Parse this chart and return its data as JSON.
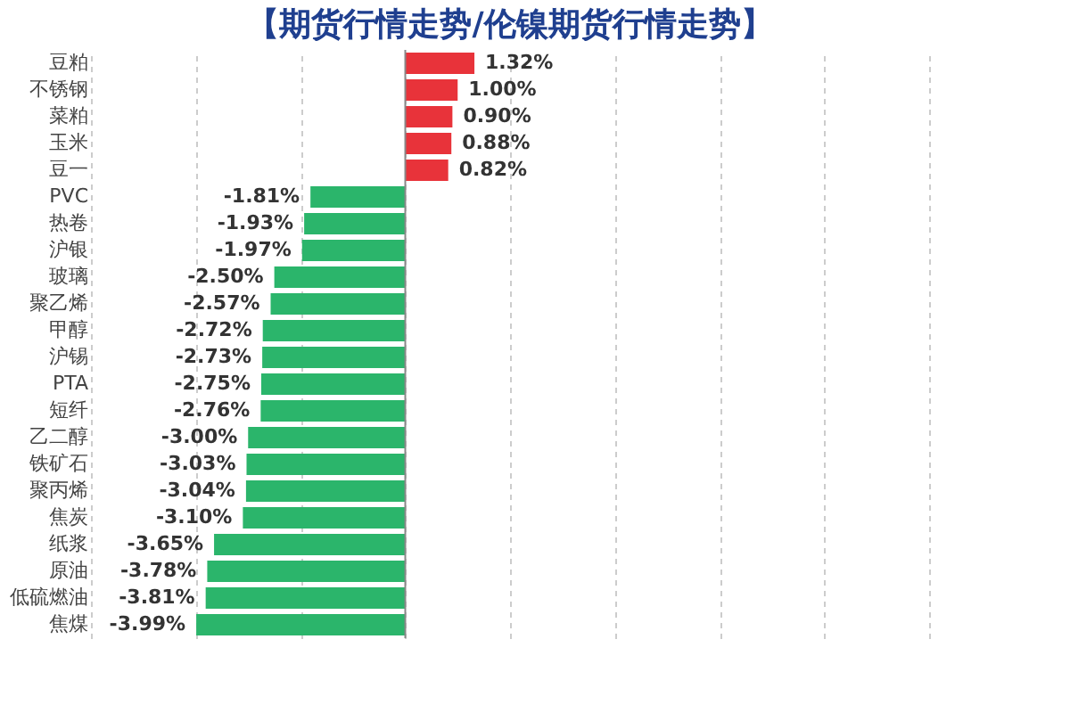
{
  "chart_data": {
    "type": "bar",
    "orientation": "horizontal",
    "title": "【期货行情走势/伦镍期货行情走势】",
    "categories": [
      "豆粕",
      "不锈钢",
      "菜粕",
      "玉米",
      "豆一",
      "PVC",
      "热卷",
      "沪银",
      "玻璃",
      "聚乙烯",
      "甲醇",
      "沪锡",
      "PTA",
      "短纤",
      "乙二醇",
      "铁矿石",
      "聚丙烯",
      "焦炭",
      "纸浆",
      "原油",
      "低硫燃油",
      "焦煤"
    ],
    "values": [
      1.32,
      1.0,
      0.9,
      0.88,
      0.82,
      -1.81,
      -1.93,
      -1.97,
      -2.5,
      -2.57,
      -2.72,
      -2.73,
      -2.75,
      -2.76,
      -3.0,
      -3.03,
      -3.04,
      -3.1,
      -3.65,
      -3.78,
      -3.81,
      -3.99
    ],
    "value_labels": [
      "1.32%",
      "1.00%",
      "0.90%",
      "0.88%",
      "0.82%",
      "-1.81%",
      "-1.93%",
      "-1.97%",
      "-2.50%",
      "-2.57%",
      "-2.72%",
      "-2.73%",
      "-2.75%",
      "-2.76%",
      "-3.00%",
      "-3.03%",
      "-3.04%",
      "-3.10%",
      "-3.65%",
      "-3.78%",
      "-3.81%",
      "-3.99%"
    ],
    "colors": [
      "#e8333a",
      "#e8333a",
      "#e8333a",
      "#e8333a",
      "#e8333a",
      "#2bb56b",
      "#2bb56b",
      "#2bb56b",
      "#2bb56b",
      "#2bb56b",
      "#2bb56b",
      "#2bb56b",
      "#2bb56b",
      "#2bb56b",
      "#2bb56b",
      "#2bb56b",
      "#2bb56b",
      "#2bb56b",
      "#2bb56b",
      "#2bb56b",
      "#2bb56b",
      "#2bb56b"
    ],
    "xlim": [
      -6,
      10
    ],
    "xticks": [
      {
        "value": -6,
        "label": null
      },
      {
        "value": -4,
        "label": null
      },
      {
        "value": -2,
        "label": null
      },
      {
        "value": 0,
        "label": null
      },
      {
        "value": 2,
        "label": null
      },
      {
        "value": 4,
        "label": null
      },
      {
        "value": 6,
        "label": null
      },
      {
        "value": 8,
        "label": null
      },
      {
        "value": 10,
        "label": null
      }
    ],
    "tick_labels": "y",
    "grid": "x"
  }
}
